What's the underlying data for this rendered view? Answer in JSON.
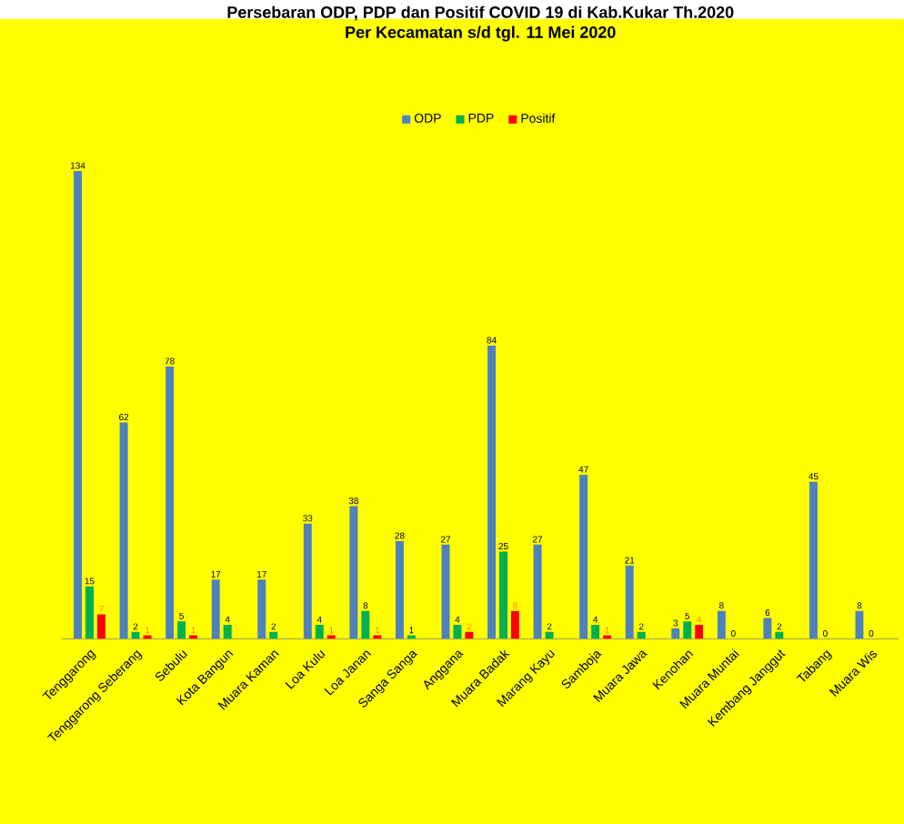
{
  "chart_data": {
    "type": "bar",
    "title": "Persebaran  ODP, PDP dan  Positif COVID 19  di Kab.Kukar Th.2020",
    "subtitle": "Per Kecamatan s/d tgl. 11 Mei  2020",
    "categories": [
      "Tenggarong",
      "Tenggarong Seberang",
      "Sebulu",
      "Kota Bangun",
      "Muara Kaman",
      "Loa Kulu",
      "Loa Janan",
      "Sanga Sanga",
      "Anggana",
      "Muara Badak",
      "Marang Kayu",
      "Samboja",
      "Muara Jawa",
      "Kenohan",
      "Muara Muntai",
      "Kembang Janggut",
      "Tabang",
      "Muara Wis"
    ],
    "series": [
      {
        "name": "ODP",
        "color": "#4f81bd",
        "values": [
          134,
          62,
          78,
          17,
          17,
          33,
          38,
          28,
          27,
          84,
          27,
          47,
          21,
          3,
          8,
          6,
          45,
          8
        ]
      },
      {
        "name": "PDP",
        "color": "#00b050",
        "values": [
          15,
          2,
          5,
          4,
          2,
          4,
          8,
          1,
          4,
          25,
          2,
          4,
          2,
          5,
          0,
          2,
          0,
          0
        ]
      },
      {
        "name": "Positif",
        "color": "#ff0000",
        "values": [
          7,
          1,
          1,
          null,
          null,
          1,
          1,
          null,
          2,
          8,
          null,
          1,
          null,
          4,
          null,
          null,
          null,
          null
        ]
      }
    ],
    "data_labels": true,
    "legend": "top"
  }
}
